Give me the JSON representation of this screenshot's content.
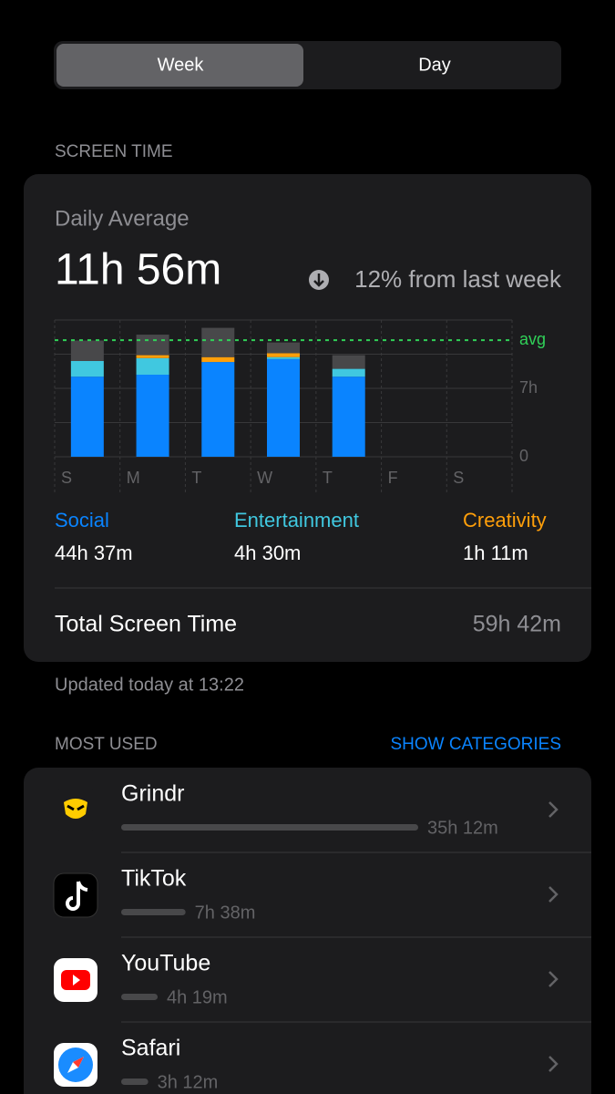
{
  "segmented_control": {
    "options": [
      "Week",
      "Day"
    ],
    "selected": 0
  },
  "screen_time_header": "SCREEN TIME",
  "summary": {
    "label": "Daily Average",
    "value": "11h 56m",
    "change": "12% from last week"
  },
  "chart_data": {
    "type": "stacked-bar",
    "categories": [
      "S",
      "M",
      "T",
      "W",
      "T",
      "F",
      "S"
    ],
    "series": [
      {
        "name": "Social",
        "total": "44h 37m",
        "color": "#0a84ff",
        "values": [
          8.2,
          8.4,
          9.7,
          10.0,
          8.2,
          null,
          null
        ]
      },
      {
        "name": "Entertainment",
        "total": "4h 30m",
        "color": "#40c8e0",
        "values": [
          1.6,
          1.7,
          0,
          0.2,
          0.8,
          null,
          null
        ]
      },
      {
        "name": "Creativity",
        "total": "1h 11m",
        "color": "#ff9f0a",
        "values": [
          0,
          0.3,
          0.5,
          0.4,
          0,
          null,
          null
        ]
      },
      {
        "color": "#48484a",
        "values": [
          2.1,
          2.1,
          3.0,
          1.1,
          1.4,
          null,
          null
        ]
      }
    ],
    "ylim": [
      0,
      14
    ],
    "yticks": [
      0,
      {
        "value": 7,
        "label": "7h"
      }
    ],
    "gridlines": [
      3.5,
      10.5,
      14
    ],
    "average": {
      "value": 11.93,
      "label": "avg",
      "color": "#30d158"
    }
  },
  "total": {
    "label": "Total Screen Time",
    "value": "59h 42m"
  },
  "updated": "Updated today at 13:22",
  "most_used": {
    "header": "MOST USED",
    "action": "SHOW CATEGORIES",
    "apps": [
      {
        "name": "Grindr",
        "hours": 35.2,
        "value_label": "35h 12m"
      },
      {
        "name": "TikTok",
        "hours": 7.63,
        "value_label": "7h 38m"
      },
      {
        "name": "YouTube",
        "hours": 4.32,
        "value_label": "4h 19m"
      },
      {
        "name": "Safari",
        "hours": 3.2,
        "value_label": "3h 12m"
      }
    ]
  }
}
